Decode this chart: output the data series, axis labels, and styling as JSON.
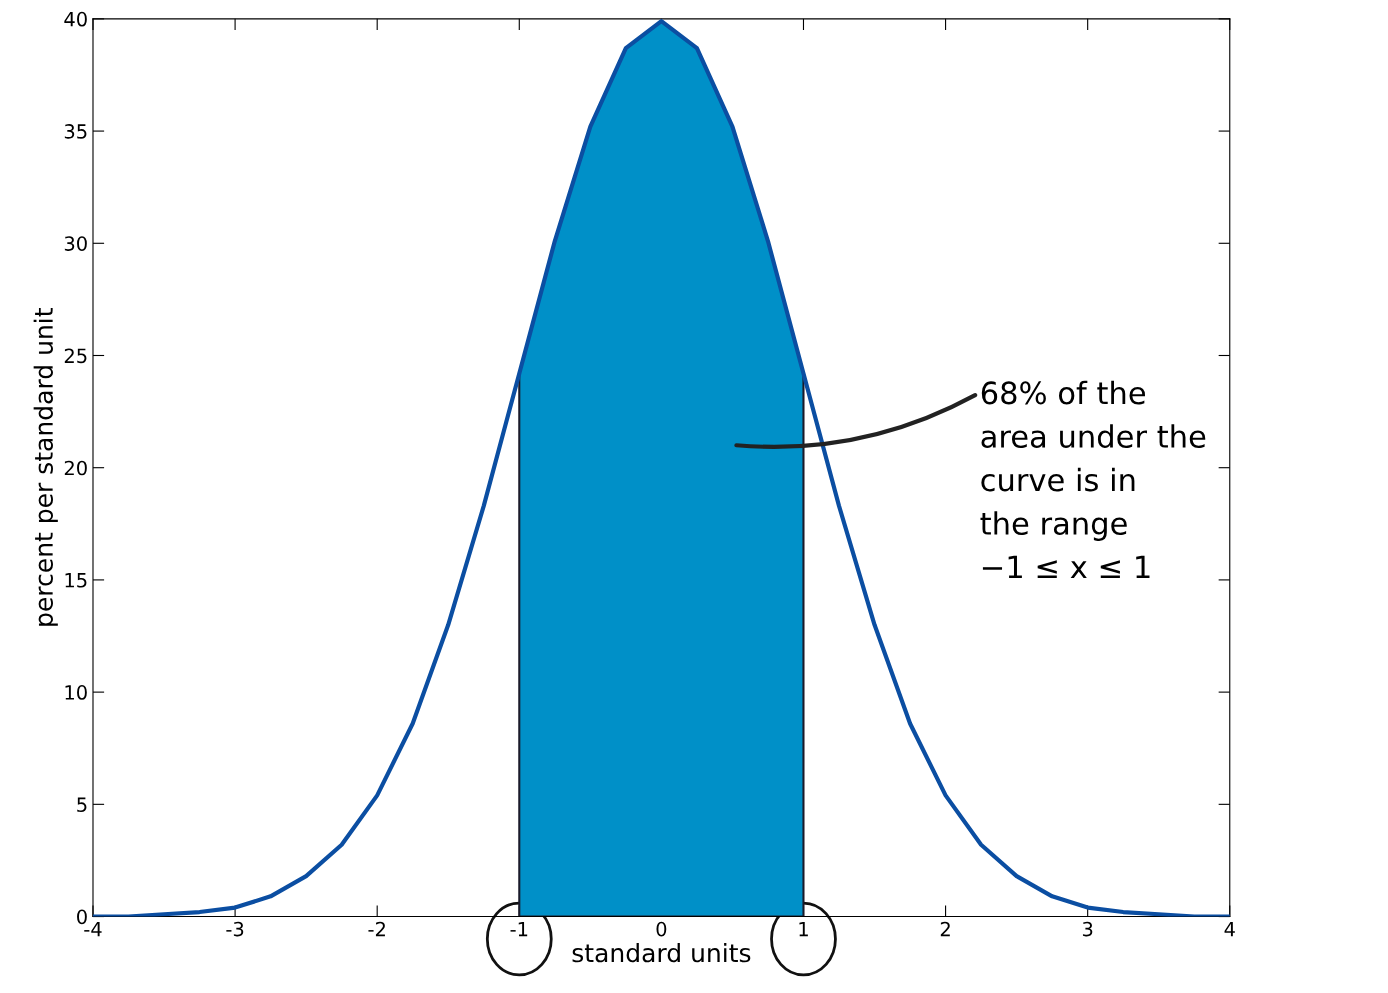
{
  "chart_data": {
    "type": "line",
    "xlabel": "standard units",
    "ylabel": "percent per standard unit",
    "xlim": [
      -4,
      4
    ],
    "ylim": [
      0,
      40
    ],
    "xticks": [
      -4,
      -3,
      -2,
      -1,
      0,
      1,
      2,
      3,
      4
    ],
    "yticks": [
      0,
      5,
      10,
      15,
      20,
      25,
      30,
      35,
      40
    ],
    "grid": false,
    "series": [
      {
        "type": "area",
        "color": "#0090c8",
        "x": [
          -1,
          -0.75,
          -0.5,
          -0.25,
          0,
          0.25,
          0.5,
          0.75,
          1
        ],
        "values": [
          24.2,
          30.1,
          35.2,
          38.7,
          39.9,
          38.7,
          35.2,
          30.1,
          24.2
        ]
      },
      {
        "color": "#0b4ea2",
        "x": [
          -4,
          -3.75,
          -3.5,
          -3.25,
          -3,
          -2.75,
          -2.5,
          -2.25,
          -2,
          -1.75,
          -1.5,
          -1.25,
          -1,
          -0.75,
          -0.5,
          -0.25,
          0,
          0.25,
          0.5,
          0.75,
          1,
          1.25,
          1.5,
          1.75,
          2,
          2.25,
          2.5,
          2.75,
          3,
          3.25,
          3.5,
          3.75,
          4
        ],
        "values": [
          0.0,
          0.0,
          0.1,
          0.2,
          0.4,
          0.9,
          1.8,
          3.2,
          5.4,
          8.6,
          13.0,
          18.3,
          24.2,
          30.1,
          35.2,
          38.7,
          39.9,
          38.7,
          35.2,
          30.1,
          24.2,
          18.3,
          13.0,
          8.6,
          5.4,
          3.2,
          1.8,
          0.9,
          0.4,
          0.2,
          0.1,
          0.0,
          0.0
        ]
      }
    ],
    "annotations": [
      "68% of the\narea under the\ncurve is in\nthe range\n−1 ≤ x ≤ 1"
    ]
  }
}
